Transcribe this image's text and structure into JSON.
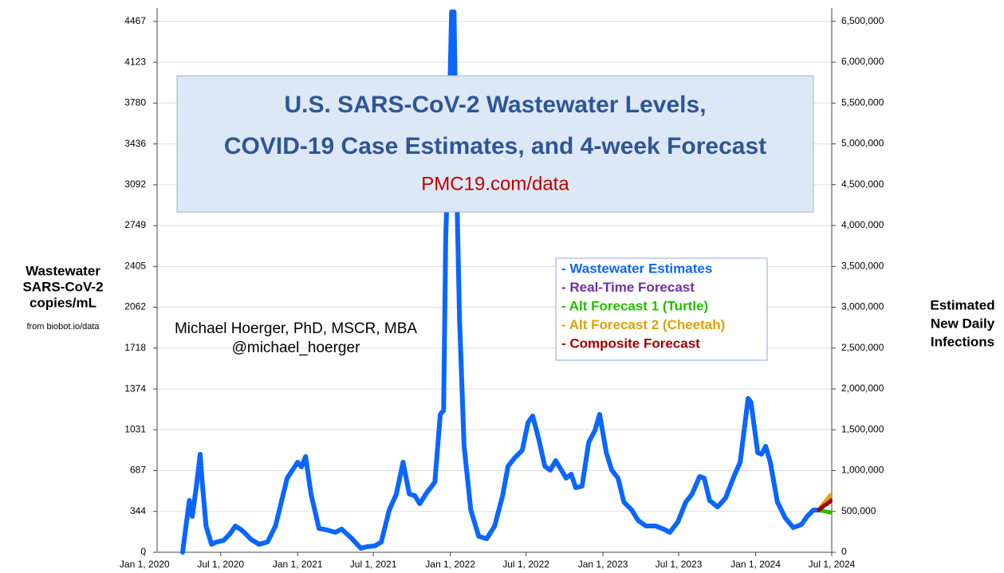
{
  "chart_data": {
    "type": "line",
    "title": [
      "U.S. SARS-CoV-2 Wastewater Levels,",
      "COVID-19 Case Estimates, and 4-week Forecast"
    ],
    "subtitle": "PMC19.com/data",
    "annotations": [
      "Michael Hoerger, PhD, MSCR, MBA",
      "@michael_hoerger"
    ],
    "y_label": [
      "Wastewater",
      "SARS-CoV-2",
      "copies/mL"
    ],
    "y_source": "from biobot.io/data",
    "y2_label": [
      "Estimated",
      "New Daily",
      "Infections"
    ],
    "xlim": [
      "2020-01-31",
      "2024-07-01"
    ],
    "xticks": [
      {
        "value": "2020-01-01",
        "label": "Jan 1, 2020"
      },
      {
        "value": "2020-07-01",
        "label": "Jul 1, 2020"
      },
      {
        "value": "2021-01-01",
        "label": "Jan 1, 2021"
      },
      {
        "value": "2021-07-01",
        "label": "Jul 1, 2021"
      },
      {
        "value": "2022-01-01",
        "label": "Jan 1, 2022"
      },
      {
        "value": "2022-07-01",
        "label": "Jul 1, 2022"
      },
      {
        "value": "2023-01-01",
        "label": "Jan 1, 2023"
      },
      {
        "value": "2023-07-01",
        "label": "Jul 1, 2023"
      },
      {
        "value": "2024-01-01",
        "label": "Jan 1, 2024"
      },
      {
        "value": "2024-07-01",
        "label": "Jul 1, 2024"
      }
    ],
    "ylim": [
      0,
      4580
    ],
    "yticks": [
      0,
      344,
      687,
      1031,
      1374,
      1718,
      2062,
      2405,
      2749,
      3092,
      3436,
      3780,
      4123,
      4467
    ],
    "y2lim": [
      0,
      6664000
    ],
    "y2ticks": [
      0,
      {
        "value": 500000,
        "label": "500,000"
      },
      {
        "value": 1000000,
        "label": "1,000,000"
      },
      {
        "value": 1500000,
        "label": "1,500,000"
      },
      {
        "value": 2000000,
        "label": "2,000,000"
      },
      {
        "value": 2500000,
        "label": "2,500,000"
      },
      {
        "value": 3000000,
        "label": "3,000,000"
      },
      {
        "value": 3500000,
        "label": "3,500,000"
      },
      {
        "value": 4000000,
        "label": "4,000,000"
      },
      {
        "value": 4500000,
        "label": "4,500,000"
      },
      {
        "value": 5000000,
        "label": "5,000,000"
      },
      {
        "value": 5500000,
        "label": "5,500,000"
      },
      {
        "value": 6000000,
        "label": "6,000,000"
      },
      {
        "value": 6500000,
        "label": "6,500,000"
      }
    ],
    "grid": true,
    "legend": "right",
    "series": [
      {
        "name": "- Wastewater Estimates",
        "color": "#0a66ff",
        "x": [
          "2020-04-01",
          "2020-04-17",
          "2020-04-24",
          "2020-05-04",
          "2020-05-13",
          "2020-05-17",
          "2020-05-27",
          "2020-06-09",
          "2020-06-22",
          "2020-07-08",
          "2020-07-23",
          "2020-08-05",
          "2020-08-17",
          "2020-08-26",
          "2020-09-12",
          "2020-10-01",
          "2020-10-21",
          "2020-11-09",
          "2020-12-07",
          "2021-01-01",
          "2021-01-10",
          "2021-01-20",
          "2021-02-02",
          "2021-02-21",
          "2021-03-12",
          "2021-04-01",
          "2021-04-16",
          "2021-05-09",
          "2021-06-01",
          "2021-06-16",
          "2021-07-05",
          "2021-07-20",
          "2021-08-08",
          "2021-08-25",
          "2021-09-10",
          "2021-09-25",
          "2021-10-08",
          "2021-10-20",
          "2021-11-06",
          "2021-11-25",
          "2021-12-08",
          "2021-12-16",
          "2021-12-21",
          "2021-12-29",
          "2022-01-04",
          "2022-01-10",
          "2022-01-15",
          "2022-01-23",
          "2022-02-03",
          "2022-02-19",
          "2022-03-10",
          "2022-03-29",
          "2022-04-17",
          "2022-05-06",
          "2022-05-19",
          "2022-06-03",
          "2022-06-22",
          "2022-07-06",
          "2022-07-17",
          "2022-07-31",
          "2022-08-15",
          "2022-08-28",
          "2022-09-10",
          "2022-10-05",
          "2022-10-17",
          "2022-10-28",
          "2022-11-12",
          "2022-11-28",
          "2022-12-13",
          "2022-12-24",
          "2023-01-09",
          "2023-01-22",
          "2023-02-06",
          "2023-02-20",
          "2023-03-11",
          "2023-03-26",
          "2023-04-14",
          "2023-05-07",
          "2023-05-26",
          "2023-06-10",
          "2023-06-29",
          "2023-07-18",
          "2023-08-02",
          "2023-08-20",
          "2023-08-31",
          "2023-09-13",
          "2023-10-02",
          "2023-10-21",
          "2023-11-10",
          "2023-11-25",
          "2023-12-14",
          "2023-12-21",
          "2024-01-06",
          "2024-01-15",
          "2024-01-25",
          "2024-02-05",
          "2024-02-22",
          "2024-03-12",
          "2024-03-31",
          "2024-04-20",
          "2024-05-03",
          "2024-05-18",
          "2024-05-31"
        ],
        "values": [
          0,
          436,
          302,
          557,
          825,
          624,
          221,
          67,
          87,
          100,
          154,
          221,
          195,
          168,
          107,
          67,
          87,
          221,
          624,
          758,
          718,
          805,
          490,
          201,
          188,
          168,
          195,
          121,
          34,
          47,
          54,
          87,
          355,
          490,
          758,
          490,
          476,
          409,
          503,
          590,
          1160,
          1194,
          2636,
          3575,
          4547,
          4547,
          3307,
          1965,
          892,
          355,
          134,
          114,
          221,
          476,
          724,
          791,
          858,
          1093,
          1147,
          959,
          724,
          691,
          771,
          624,
          657,
          543,
          557,
          926,
          1026,
          1160,
          838,
          691,
          624,
          423,
          355,
          268,
          221,
          221,
          195,
          168,
          255,
          423,
          490,
          637,
          624,
          436,
          382,
          456,
          637,
          758,
          1294,
          1261,
          838,
          825,
          892,
          758,
          423,
          288,
          208,
          235,
          302,
          355,
          355
        ]
      },
      {
        "name": "- Real-Time Forecast",
        "color": "#7030a0",
        "x": [
          "2024-05-31",
          "2024-06-07",
          "2024-06-14",
          "2024-06-21",
          "2024-06-28"
        ],
        "values": [
          355,
          380,
          400,
          420,
          440
        ]
      },
      {
        "name": "- Alt Forecast 1 (Turtle)",
        "color": "#22c000",
        "x": [
          "2024-05-31",
          "2024-06-07",
          "2024-06-14",
          "2024-06-21",
          "2024-06-28"
        ],
        "values": [
          355,
          350,
          345,
          340,
          335
        ]
      },
      {
        "name": "- Alt Forecast 2 (Cheetah)",
        "color": "#e0a000",
        "x": [
          "2024-05-31",
          "2024-06-07",
          "2024-06-14",
          "2024-06-21",
          "2024-06-28"
        ],
        "values": [
          355,
          390,
          420,
          450,
          480
        ]
      },
      {
        "name": "- Composite Forecast",
        "color": "#a00000",
        "x": [
          "2024-05-31",
          "2024-06-07",
          "2024-06-14",
          "2024-06-21",
          "2024-06-28"
        ],
        "values": [
          355,
          375,
          395,
          410,
          430
        ]
      }
    ]
  }
}
